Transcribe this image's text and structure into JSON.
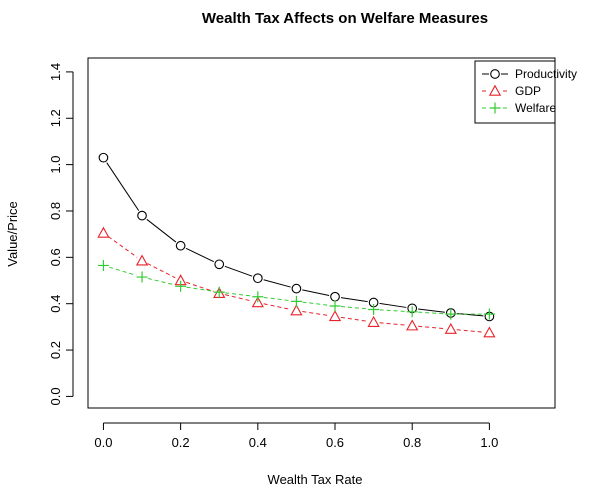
{
  "chart_data": {
    "type": "line",
    "title": "Wealth Tax Affects on Welfare Measures",
    "xlabel": "Wealth Tax Rate",
    "ylabel": "Value/Price",
    "x": [
      0.0,
      0.1,
      0.2,
      0.3,
      0.4,
      0.5,
      0.6,
      0.7,
      0.8,
      0.9,
      1.0
    ],
    "x_ticks": [
      "0.0",
      "0.2",
      "0.4",
      "0.6",
      "0.8",
      "1.0"
    ],
    "y_ticks": [
      "0.0",
      "0.2",
      "0.4",
      "0.6",
      "0.8",
      "1.0",
      "1.2",
      "1.4"
    ],
    "xlim": [
      -0.04,
      1.17
    ],
    "ylim": [
      -0.05,
      1.46
    ],
    "grid": false,
    "legend_position": "top-right",
    "series": [
      {
        "name": "Productivity",
        "color": "#000000",
        "marker": "circle",
        "line": "solid",
        "values": [
          1.03,
          0.78,
          0.65,
          0.57,
          0.51,
          0.465,
          0.43,
          0.405,
          0.38,
          0.36,
          0.345
        ]
      },
      {
        "name": "GDP",
        "color": "#e8222a",
        "marker": "triangle",
        "line": "dashed",
        "values": [
          0.705,
          0.585,
          0.5,
          0.445,
          0.405,
          0.37,
          0.345,
          0.32,
          0.305,
          0.29,
          0.275
        ]
      },
      {
        "name": "Welfare",
        "color": "#33cc33",
        "marker": "plus",
        "line": "dashed",
        "values": [
          0.565,
          0.515,
          0.475,
          0.45,
          0.43,
          0.41,
          0.39,
          0.375,
          0.365,
          0.355,
          0.355
        ]
      }
    ]
  }
}
